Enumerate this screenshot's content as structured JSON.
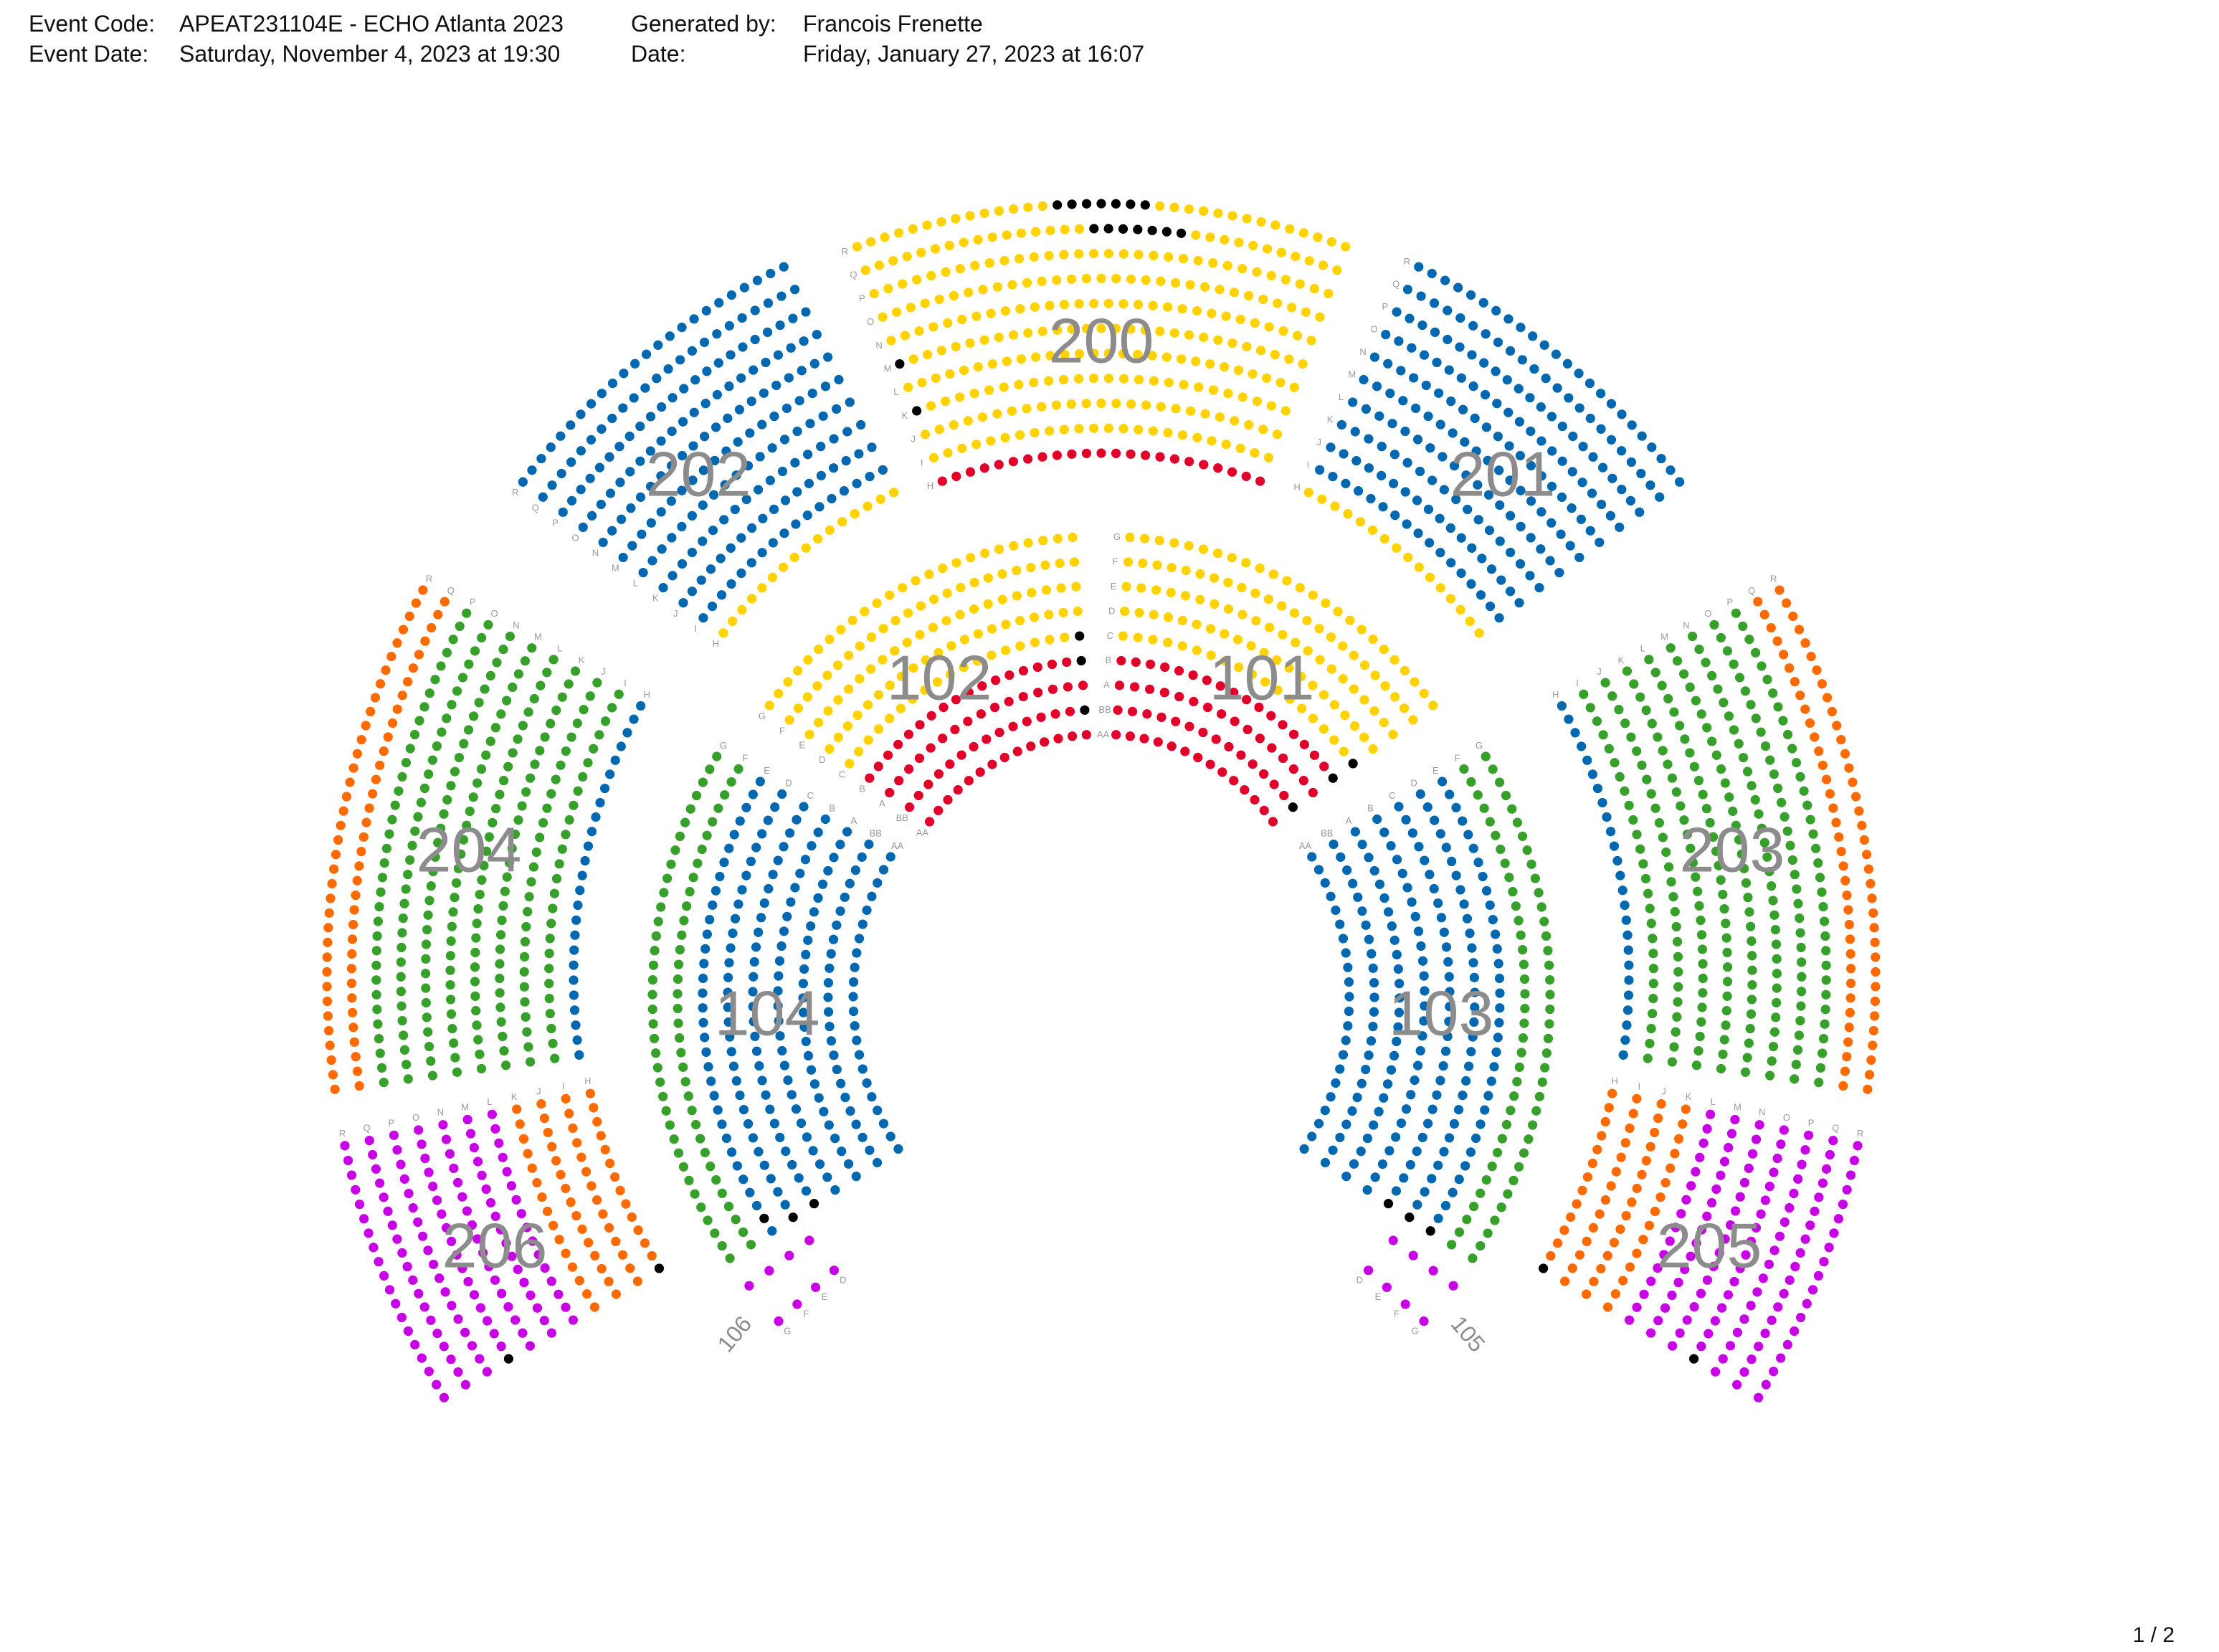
{
  "header": {
    "event_code_label": "Event Code:",
    "event_code": "APEAT231104E - ECHO Atlanta 2023",
    "generated_by_label": "Generated by:",
    "generated_by": "Francois Frenette",
    "event_date_label": "Event Date:",
    "event_date": "Saturday, November 4, 2023 at 19:30",
    "date_label": "Date:",
    "date": "Friday, January 27, 2023 at 16:07"
  },
  "page_indicator": "1 / 2",
  "seat_colors": {
    "yellow": "#FFD200",
    "blue": "#0067B1",
    "red": "#E1002A",
    "green": "#36A02B",
    "orange": "#FF6A00",
    "magenta": "#C700E6",
    "held": "#000000"
  },
  "sections": [
    {
      "name": "200",
      "rows": [
        {
          "label": "H",
          "color": "red"
        },
        {
          "label": "I",
          "color": "yellow"
        },
        {
          "label": "J",
          "color": "yellow"
        },
        {
          "label": "K",
          "color": "yellow",
          "held": [
            0
          ]
        },
        {
          "label": "L",
          "color": "yellow"
        },
        {
          "label": "M",
          "color": "yellow",
          "held": [
            0
          ]
        },
        {
          "label": "N",
          "color": "yellow"
        },
        {
          "label": "O",
          "color": "yellow"
        },
        {
          "label": "P",
          "color": "yellow"
        },
        {
          "label": "Q",
          "color": "yellow",
          "held": [
            16,
            17,
            18,
            19,
            20,
            21,
            22
          ]
        },
        {
          "label": "R",
          "color": "yellow",
          "held": [
            14,
            15,
            16,
            17,
            18,
            19,
            20
          ]
        }
      ]
    },
    {
      "name": "201",
      "rows": [
        {
          "label": "H",
          "color": "yellow"
        },
        {
          "label": "I",
          "color": "blue"
        },
        {
          "label": "J",
          "color": "blue"
        },
        {
          "label": "K",
          "color": "blue"
        },
        {
          "label": "L",
          "color": "blue"
        },
        {
          "label": "M",
          "color": "blue"
        },
        {
          "label": "N",
          "color": "blue"
        },
        {
          "label": "O",
          "color": "blue"
        },
        {
          "label": "P",
          "color": "blue"
        },
        {
          "label": "Q",
          "color": "blue"
        },
        {
          "label": "R",
          "color": "blue"
        }
      ]
    },
    {
      "name": "202",
      "rows": [
        {
          "label": "H",
          "color": "yellow"
        },
        {
          "label": "I",
          "color": "blue"
        },
        {
          "label": "J",
          "color": "blue"
        },
        {
          "label": "K",
          "color": "blue"
        },
        {
          "label": "L",
          "color": "blue"
        },
        {
          "label": "M",
          "color": "blue"
        },
        {
          "label": "N",
          "color": "blue"
        },
        {
          "label": "O",
          "color": "blue"
        },
        {
          "label": "P",
          "color": "blue"
        },
        {
          "label": "Q",
          "color": "blue"
        },
        {
          "label": "R",
          "color": "blue"
        }
      ]
    },
    {
      "name": "101",
      "rows": [
        {
          "label": "AA",
          "color": "red"
        },
        {
          "label": "BB",
          "color": "red",
          "held": [
            -1
          ]
        },
        {
          "label": "A",
          "color": "red"
        },
        {
          "label": "B",
          "color": "red",
          "held": [
            -1
          ]
        },
        {
          "label": "C",
          "color": "yellow",
          "held": [
            -1
          ]
        },
        {
          "label": "D",
          "color": "yellow"
        },
        {
          "label": "E",
          "color": "yellow"
        },
        {
          "label": "F",
          "color": "yellow"
        },
        {
          "label": "G",
          "color": "yellow"
        }
      ]
    },
    {
      "name": "102",
      "rows": [
        {
          "label": "AA",
          "color": "red"
        },
        {
          "label": "BB",
          "color": "red",
          "held": [
            0
          ]
        },
        {
          "label": "A",
          "color": "red"
        },
        {
          "label": "B",
          "color": "red",
          "held": [
            0
          ]
        },
        {
          "label": "C",
          "color": "yellow",
          "held": [
            0
          ]
        },
        {
          "label": "D",
          "color": "yellow"
        },
        {
          "label": "E",
          "color": "yellow"
        },
        {
          "label": "F",
          "color": "yellow"
        },
        {
          "label": "G",
          "color": "yellow"
        }
      ]
    },
    {
      "name": "203",
      "rows": [
        {
          "label": "H",
          "color": "blue"
        },
        {
          "label": "I",
          "color": "green"
        },
        {
          "label": "J",
          "color": "green"
        },
        {
          "label": "K",
          "color": "green"
        },
        {
          "label": "L",
          "color": "green"
        },
        {
          "label": "M",
          "color": "green"
        },
        {
          "label": "N",
          "color": "green"
        },
        {
          "label": "O",
          "color": "green"
        },
        {
          "label": "P",
          "color": "green"
        },
        {
          "label": "Q",
          "color": "orange"
        },
        {
          "label": "R",
          "color": "orange"
        }
      ]
    },
    {
      "name": "204",
      "rows": [
        {
          "label": "H",
          "color": "blue"
        },
        {
          "label": "I",
          "color": "green"
        },
        {
          "label": "J",
          "color": "green"
        },
        {
          "label": "K",
          "color": "green"
        },
        {
          "label": "L",
          "color": "green"
        },
        {
          "label": "M",
          "color": "green"
        },
        {
          "label": "N",
          "color": "green"
        },
        {
          "label": "O",
          "color": "green"
        },
        {
          "label": "P",
          "color": "green"
        },
        {
          "label": "Q",
          "color": "orange"
        },
        {
          "label": "R",
          "color": "orange"
        }
      ]
    },
    {
      "name": "103",
      "rows": [
        {
          "label": "AA",
          "color": "blue"
        },
        {
          "label": "BB",
          "color": "blue"
        },
        {
          "label": "A",
          "color": "blue"
        },
        {
          "label": "B",
          "color": "blue"
        },
        {
          "label": "C",
          "color": "blue",
          "held": [
            -1
          ]
        },
        {
          "label": "D",
          "color": "blue",
          "held": [
            -1
          ]
        },
        {
          "label": "E",
          "color": "blue",
          "held": [
            -1
          ]
        },
        {
          "label": "F",
          "color": "green"
        },
        {
          "label": "G",
          "color": "green"
        }
      ]
    },
    {
      "name": "104",
      "rows": [
        {
          "label": "AA",
          "color": "blue"
        },
        {
          "label": "BB",
          "color": "blue"
        },
        {
          "label": "A",
          "color": "blue"
        },
        {
          "label": "B",
          "color": "blue"
        },
        {
          "label": "C",
          "color": "blue",
          "held": [
            -1
          ]
        },
        {
          "label": "D",
          "color": "blue",
          "held": [
            -1
          ]
        },
        {
          "label": "E",
          "color": "blue",
          "held": [
            -2
          ]
        },
        {
          "label": "F",
          "color": "green"
        },
        {
          "label": "G",
          "color": "green"
        }
      ]
    },
    {
      "name": "205",
      "rows": [
        {
          "label": "H",
          "color": "orange",
          "held": [
            -1
          ]
        },
        {
          "label": "I",
          "color": "orange"
        },
        {
          "label": "J",
          "color": "orange"
        },
        {
          "label": "K",
          "color": "orange"
        },
        {
          "label": "L",
          "color": "magenta"
        },
        {
          "label": "M",
          "color": "magenta"
        },
        {
          "label": "N",
          "color": "magenta"
        },
        {
          "label": "O",
          "color": "magenta",
          "held": [
            -1
          ]
        },
        {
          "label": "P",
          "color": "magenta"
        },
        {
          "label": "Q",
          "color": "magenta"
        },
        {
          "label": "R",
          "color": "magenta"
        }
      ]
    },
    {
      "name": "206",
      "rows": [
        {
          "label": "H",
          "color": "orange",
          "held": [
            -1
          ]
        },
        {
          "label": "I",
          "color": "orange"
        },
        {
          "label": "J",
          "color": "orange"
        },
        {
          "label": "K",
          "color": "orange"
        },
        {
          "label": "L",
          "color": "magenta"
        },
        {
          "label": "M",
          "color": "magenta"
        },
        {
          "label": "N",
          "color": "magenta"
        },
        {
          "label": "O",
          "color": "magenta",
          "held": [
            -1
          ]
        },
        {
          "label": "P",
          "color": "magenta"
        },
        {
          "label": "Q",
          "color": "magenta"
        },
        {
          "label": "R",
          "color": "magenta"
        }
      ]
    },
    {
      "name": "105",
      "rows": [
        {
          "label": "D",
          "color": "magenta"
        },
        {
          "label": "E",
          "color": "magenta"
        },
        {
          "label": "F",
          "color": "magenta"
        },
        {
          "label": "G",
          "color": "magenta"
        }
      ]
    },
    {
      "name": "106",
      "rows": [
        {
          "label": "D",
          "color": "magenta"
        },
        {
          "label": "E",
          "color": "magenta"
        },
        {
          "label": "F",
          "color": "magenta"
        },
        {
          "label": "G",
          "color": "magenta"
        }
      ]
    }
  ]
}
